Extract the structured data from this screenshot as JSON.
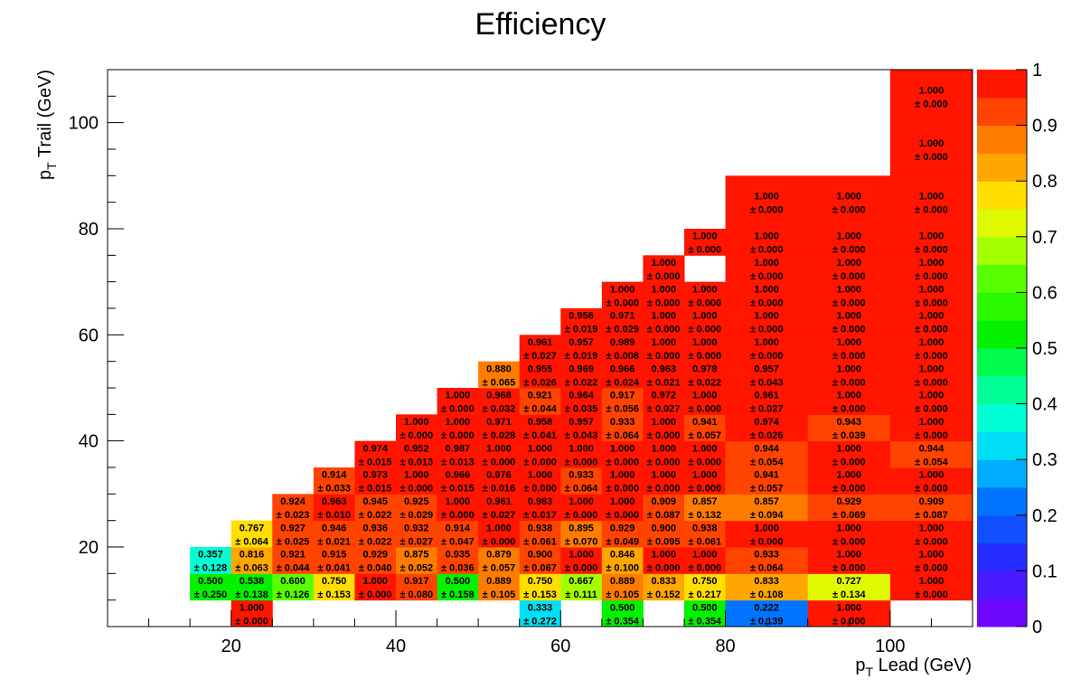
{
  "chart_data": {
    "type": "heatmap",
    "title": "Efficiency",
    "xlabel": {
      "main": "p",
      "sub": "T",
      "rest": " Lead (GeV)"
    },
    "ylabel": {
      "main": "p",
      "sub": "T",
      "rest": " Trail (GeV)"
    },
    "xlim": [
      5,
      110
    ],
    "ylim": [
      5,
      110
    ],
    "x_ticks": [
      20,
      40,
      60,
      80,
      100
    ],
    "y_ticks": [
      20,
      40,
      60,
      80,
      100
    ],
    "colorbar": {
      "range": [
        0,
        1
      ],
      "ticks": [
        "0",
        "0.1",
        "0.2",
        "0.3",
        "0.4",
        "0.5",
        "0.6",
        "0.7",
        "0.8",
        "0.9",
        "1"
      ],
      "levels": 20
    },
    "cells": [
      [
        20,
        25,
        5,
        10,
        "1.000",
        "0.000"
      ],
      [
        55,
        60,
        5,
        10,
        "0.333",
        "0.272"
      ],
      [
        65,
        70,
        5,
        10,
        "0.500",
        "0.354"
      ],
      [
        75,
        80,
        5,
        10,
        "0.500",
        "0.354"
      ],
      [
        80,
        90,
        5,
        10,
        "0.222",
        "0.139"
      ],
      [
        90,
        100,
        5,
        10,
        "1.000",
        "0.000"
      ],
      [
        15,
        20,
        10,
        15,
        "0.500",
        "0.250"
      ],
      [
        20,
        25,
        10,
        15,
        "0.538",
        "0.138"
      ],
      [
        25,
        30,
        10,
        15,
        "0.600",
        "0.126"
      ],
      [
        30,
        35,
        10,
        15,
        "0.750",
        "0.153"
      ],
      [
        35,
        40,
        10,
        15,
        "1.000",
        "0.000"
      ],
      [
        40,
        45,
        10,
        15,
        "0.917",
        "0.080"
      ],
      [
        45,
        50,
        10,
        15,
        "0.500",
        "0.158"
      ],
      [
        50,
        55,
        10,
        15,
        "0.889",
        "0.105"
      ],
      [
        55,
        60,
        10,
        15,
        "0.750",
        "0.153"
      ],
      [
        60,
        65,
        10,
        15,
        "0.667",
        "0.111"
      ],
      [
        65,
        70,
        10,
        15,
        "0.889",
        "0.105"
      ],
      [
        70,
        75,
        10,
        15,
        "0.833",
        "0.152"
      ],
      [
        75,
        80,
        10,
        15,
        "0.750",
        "0.217"
      ],
      [
        80,
        90,
        10,
        15,
        "0.833",
        "0.108"
      ],
      [
        90,
        100,
        10,
        15,
        "0.727",
        "0.134"
      ],
      [
        100,
        110,
        10,
        15,
        "1.000",
        "0.000"
      ],
      [
        15,
        20,
        15,
        20,
        "0.357",
        "0.128"
      ],
      [
        20,
        25,
        15,
        20,
        "0.816",
        "0.063"
      ],
      [
        25,
        30,
        15,
        20,
        "0.921",
        "0.044"
      ],
      [
        30,
        35,
        15,
        20,
        "0.915",
        "0.041"
      ],
      [
        35,
        40,
        15,
        20,
        "0.929",
        "0.040"
      ],
      [
        40,
        45,
        15,
        20,
        "0.875",
        "0.052"
      ],
      [
        45,
        50,
        15,
        20,
        "0.935",
        "0.036"
      ],
      [
        50,
        55,
        15,
        20,
        "0.879",
        "0.057"
      ],
      [
        55,
        60,
        15,
        20,
        "0.900",
        "0.067"
      ],
      [
        60,
        65,
        15,
        20,
        "1.000",
        "0.000"
      ],
      [
        65,
        70,
        15,
        20,
        "0.846",
        "0.100"
      ],
      [
        70,
        75,
        15,
        20,
        "1.000",
        "0.000"
      ],
      [
        75,
        80,
        15,
        20,
        "1.000",
        "0.000"
      ],
      [
        80,
        90,
        15,
        20,
        "0.933",
        "0.064"
      ],
      [
        90,
        100,
        15,
        20,
        "1.000",
        "0.000"
      ],
      [
        100,
        110,
        15,
        20,
        "1.000",
        "0.000"
      ],
      [
        20,
        25,
        20,
        25,
        "0.767",
        "0.064"
      ],
      [
        25,
        30,
        20,
        25,
        "0.927",
        "0.025"
      ],
      [
        30,
        35,
        20,
        25,
        "0.946",
        "0.021"
      ],
      [
        35,
        40,
        20,
        25,
        "0.936",
        "0.022"
      ],
      [
        40,
        45,
        20,
        25,
        "0.932",
        "0.027"
      ],
      [
        45,
        50,
        20,
        25,
        "0.914",
        "0.047"
      ],
      [
        50,
        55,
        20,
        25,
        "1.000",
        "0.000"
      ],
      [
        55,
        60,
        20,
        25,
        "0.938",
        "0.061"
      ],
      [
        60,
        65,
        20,
        25,
        "0.895",
        "0.070"
      ],
      [
        65,
        70,
        20,
        25,
        "0.929",
        "0.049"
      ],
      [
        70,
        75,
        20,
        25,
        "0.900",
        "0.095"
      ],
      [
        75,
        80,
        20,
        25,
        "0.938",
        "0.061"
      ],
      [
        80,
        90,
        20,
        25,
        "1.000",
        "0.000"
      ],
      [
        90,
        100,
        20,
        25,
        "1.000",
        "0.000"
      ],
      [
        100,
        110,
        20,
        25,
        "1.000",
        "0.000"
      ],
      [
        25,
        30,
        25,
        30,
        "0.924",
        "0.023"
      ],
      [
        30,
        35,
        25,
        30,
        "0.963",
        "0.010"
      ],
      [
        35,
        40,
        25,
        30,
        "0.945",
        "0.022"
      ],
      [
        40,
        45,
        25,
        30,
        "0.925",
        "0.029"
      ],
      [
        45,
        50,
        25,
        30,
        "1.000",
        "0.000"
      ],
      [
        50,
        55,
        25,
        30,
        "0.961",
        "0.027"
      ],
      [
        55,
        60,
        25,
        30,
        "0.983",
        "0.017"
      ],
      [
        60,
        65,
        25,
        30,
        "1.000",
        "0.000"
      ],
      [
        65,
        70,
        25,
        30,
        "1.000",
        "0.000"
      ],
      [
        70,
        75,
        25,
        30,
        "0.909",
        "0.087"
      ],
      [
        75,
        80,
        25,
        30,
        "0.857",
        "0.132"
      ],
      [
        80,
        90,
        25,
        30,
        "0.857",
        "0.094"
      ],
      [
        90,
        100,
        25,
        30,
        "0.929",
        "0.069"
      ],
      [
        100,
        110,
        25,
        30,
        "0.909",
        "0.087"
      ],
      [
        30,
        35,
        30,
        35,
        "0.914",
        "0.033"
      ],
      [
        35,
        40,
        30,
        35,
        "0.973",
        "0.015"
      ],
      [
        40,
        45,
        30,
        35,
        "1.000",
        "0.000"
      ],
      [
        45,
        50,
        30,
        35,
        "0.966",
        "0.015"
      ],
      [
        50,
        55,
        30,
        35,
        "0.976",
        "0.016"
      ],
      [
        55,
        60,
        30,
        35,
        "1.000",
        "0.000"
      ],
      [
        60,
        65,
        30,
        35,
        "0.933",
        "0.064"
      ],
      [
        65,
        70,
        30,
        35,
        "1.000",
        "0.000"
      ],
      [
        70,
        75,
        30,
        35,
        "1.000",
        "0.000"
      ],
      [
        75,
        80,
        30,
        35,
        "1.000",
        "0.000"
      ],
      [
        80,
        90,
        30,
        35,
        "0.941",
        "0.057"
      ],
      [
        90,
        100,
        30,
        35,
        "1.000",
        "0.000"
      ],
      [
        100,
        110,
        30,
        35,
        "1.000",
        "0.000"
      ],
      [
        35,
        40,
        35,
        40,
        "0.974",
        "0.015"
      ],
      [
        40,
        45,
        35,
        40,
        "0.952",
        "0.013"
      ],
      [
        45,
        50,
        35,
        40,
        "0.987",
        "0.013"
      ],
      [
        50,
        55,
        35,
        40,
        "1.000",
        "0.000"
      ],
      [
        55,
        60,
        35,
        40,
        "1.000",
        "0.000"
      ],
      [
        60,
        65,
        35,
        40,
        "1.000",
        "0.000"
      ],
      [
        65,
        70,
        35,
        40,
        "1.000",
        "0.000"
      ],
      [
        70,
        75,
        35,
        40,
        "1.000",
        "0.000"
      ],
      [
        75,
        80,
        35,
        40,
        "1.000",
        "0.000"
      ],
      [
        80,
        90,
        35,
        40,
        "0.944",
        "0.054"
      ],
      [
        90,
        100,
        35,
        40,
        "1.000",
        "0.000"
      ],
      [
        100,
        110,
        35,
        40,
        "0.944",
        "0.054"
      ],
      [
        40,
        45,
        40,
        45,
        "1.000",
        "0.000"
      ],
      [
        45,
        50,
        40,
        45,
        "1.000",
        "0.000"
      ],
      [
        50,
        55,
        40,
        45,
        "0.971",
        "0.028"
      ],
      [
        55,
        60,
        40,
        45,
        "0.958",
        "0.041"
      ],
      [
        60,
        65,
        40,
        45,
        "0.957",
        "0.043"
      ],
      [
        65,
        70,
        40,
        45,
        "0.933",
        "0.064"
      ],
      [
        70,
        75,
        40,
        45,
        "1.000",
        "0.000"
      ],
      [
        75,
        80,
        40,
        45,
        "0.941",
        "0.057"
      ],
      [
        80,
        90,
        40,
        45,
        "0.974",
        "0.026"
      ],
      [
        90,
        100,
        40,
        45,
        "0.943",
        "0.039"
      ],
      [
        100,
        110,
        40,
        45,
        "1.000",
        "0.000"
      ],
      [
        45,
        50,
        45,
        50,
        "1.000",
        "0.000"
      ],
      [
        50,
        55,
        45,
        50,
        "0.968",
        "0.032"
      ],
      [
        55,
        60,
        45,
        50,
        "0.921",
        "0.044"
      ],
      [
        60,
        65,
        45,
        50,
        "0.964",
        "0.035"
      ],
      [
        65,
        70,
        45,
        50,
        "0.917",
        "0.056"
      ],
      [
        70,
        75,
        45,
        50,
        "0.972",
        "0.027"
      ],
      [
        75,
        80,
        45,
        50,
        "1.000",
        "0.000"
      ],
      [
        80,
        90,
        45,
        50,
        "0.961",
        "0.027"
      ],
      [
        90,
        100,
        45,
        50,
        "1.000",
        "0.000"
      ],
      [
        100,
        110,
        45,
        50,
        "1.000",
        "0.000"
      ],
      [
        50,
        55,
        50,
        55,
        "0.880",
        "0.065"
      ],
      [
        55,
        60,
        50,
        55,
        "0.955",
        "0.026"
      ],
      [
        60,
        65,
        50,
        55,
        "0.969",
        "0.022"
      ],
      [
        65,
        70,
        50,
        55,
        "0.966",
        "0.024"
      ],
      [
        70,
        75,
        50,
        55,
        "0.963",
        "0.021"
      ],
      [
        75,
        80,
        50,
        55,
        "0.978",
        "0.022"
      ],
      [
        80,
        90,
        50,
        55,
        "0.957",
        "0.043"
      ],
      [
        90,
        100,
        50,
        55,
        "1.000",
        "0.000"
      ],
      [
        100,
        110,
        50,
        55,
        "1.000",
        "0.000"
      ],
      [
        55,
        60,
        55,
        60,
        "0.961",
        "0.027"
      ],
      [
        60,
        65,
        55,
        60,
        "0.957",
        "0.019"
      ],
      [
        65,
        70,
        55,
        60,
        "0.989",
        "0.008"
      ],
      [
        70,
        75,
        55,
        60,
        "1.000",
        "0.000"
      ],
      [
        75,
        80,
        55,
        60,
        "1.000",
        "0.000"
      ],
      [
        80,
        90,
        55,
        60,
        "1.000",
        "0.000"
      ],
      [
        90,
        100,
        55,
        60,
        "1.000",
        "0.000"
      ],
      [
        100,
        110,
        55,
        60,
        "1.000",
        "0.000"
      ],
      [
        60,
        65,
        60,
        65,
        "0.956",
        "0.019"
      ],
      [
        65,
        70,
        60,
        65,
        "0.971",
        "0.029"
      ],
      [
        70,
        75,
        60,
        65,
        "1.000",
        "0.000"
      ],
      [
        75,
        80,
        60,
        65,
        "1.000",
        "0.000"
      ],
      [
        80,
        90,
        60,
        65,
        "1.000",
        "0.000"
      ],
      [
        90,
        100,
        60,
        65,
        "1.000",
        "0.000"
      ],
      [
        100,
        110,
        60,
        65,
        "1.000",
        "0.000"
      ],
      [
        65,
        70,
        65,
        70,
        "1.000",
        "0.000"
      ],
      [
        70,
        75,
        65,
        70,
        "1.000",
        "0.000"
      ],
      [
        75,
        80,
        65,
        70,
        "1.000",
        "0.000"
      ],
      [
        80,
        90,
        65,
        70,
        "1.000",
        "0.000"
      ],
      [
        90,
        100,
        65,
        70,
        "1.000",
        "0.000"
      ],
      [
        100,
        110,
        65,
        70,
        "1.000",
        "0.000"
      ],
      [
        70,
        75,
        70,
        75,
        "1.000",
        "0.000"
      ],
      [
        80,
        90,
        70,
        75,
        "1.000",
        "0.000"
      ],
      [
        90,
        100,
        70,
        75,
        "1.000",
        "0.000"
      ],
      [
        100,
        110,
        70,
        75,
        "1.000",
        "0.000"
      ],
      [
        75,
        80,
        75,
        80,
        "1.000",
        "0.000"
      ],
      [
        80,
        90,
        75,
        80,
        "1.000",
        "0.000"
      ],
      [
        90,
        100,
        75,
        80,
        "1.000",
        "0.000"
      ],
      [
        100,
        110,
        75,
        80,
        "1.000",
        "0.000"
      ],
      [
        80,
        90,
        80,
        90,
        "1.000",
        "0.000"
      ],
      [
        90,
        100,
        80,
        90,
        "1.000",
        "0.000"
      ],
      [
        100,
        110,
        80,
        90,
        "1.000",
        "0.000"
      ],
      [
        100,
        110,
        90,
        100,
        "1.000",
        "0.000"
      ],
      [
        100,
        110,
        100,
        110,
        "1.000",
        "0.000"
      ]
    ]
  }
}
